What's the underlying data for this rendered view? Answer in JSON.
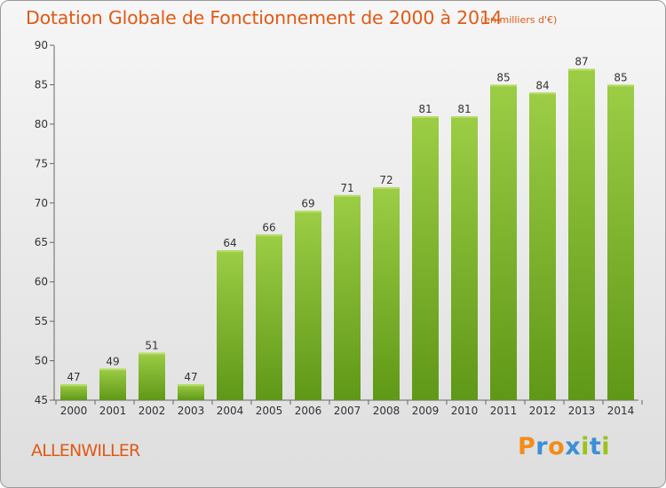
{
  "header": {
    "title": "Dotation Globale de Fonctionnement de 2000 à 2014",
    "subtitle": "(en milliers d'€)"
  },
  "footer": {
    "commune": "ALLENWILLER",
    "brand_letters": [
      "P",
      "r",
      "o",
      "x",
      "i",
      "t",
      "i"
    ],
    "brand_colors": [
      "#f28c1a",
      "#3a8fd6",
      "#f28c1a",
      "#3a8fd6",
      "#9ac31c",
      "#3a8fd6",
      "#9ac31c"
    ]
  },
  "chart_data": {
    "type": "bar",
    "title": "Dotation Globale de Fonctionnement de 2000 à 2014",
    "subtitle": "(en milliers d'€)",
    "xlabel": "",
    "ylabel": "",
    "categories": [
      "2000",
      "2001",
      "2002",
      "2003",
      "2004",
      "2005",
      "2006",
      "2007",
      "2008",
      "2009",
      "2010",
      "2011",
      "2012",
      "2013",
      "2014"
    ],
    "values": [
      47,
      49,
      51,
      47,
      64,
      66,
      69,
      71,
      72,
      81,
      81,
      85,
      84,
      87,
      85
    ],
    "ylim": [
      45,
      90
    ],
    "yticks": [
      45,
      50,
      55,
      60,
      65,
      70,
      75,
      80,
      85,
      90
    ],
    "grid": false,
    "bar_color": "#7fba2a",
    "bar_color_dark": "#5c9415"
  }
}
